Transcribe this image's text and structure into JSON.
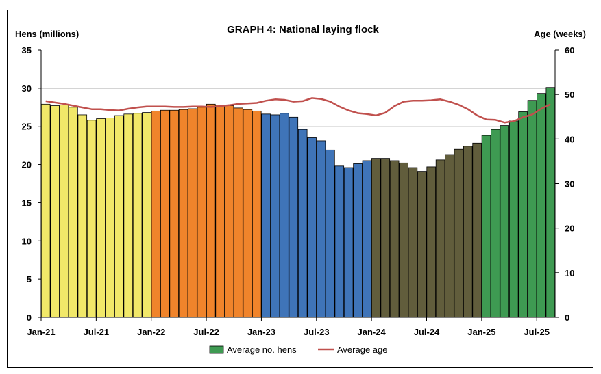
{
  "chart_data": {
    "type": "bar",
    "title": "GRAPH 4: National laying flock",
    "ylabel": "Hens (millions)",
    "y2label": "Age (weeks)",
    "ylim": [
      0,
      35
    ],
    "y2lim": [
      0,
      60
    ],
    "yticks": [
      0,
      5,
      10,
      15,
      20,
      25,
      30,
      35
    ],
    "y2ticks": [
      0,
      10,
      20,
      30,
      40,
      50,
      60
    ],
    "xtick_labels": [
      "Jan-21",
      "Jul-21",
      "Jan-22",
      "Jul-22",
      "Jan-23",
      "Jul-23",
      "Jan-24",
      "Jul-24",
      "Jan-25",
      "Jul-25"
    ],
    "grid": "horizontal at 25 and 30",
    "legend_position": "bottom",
    "categories": [
      "Jan-21",
      "Feb-21",
      "Mar-21",
      "Apr-21",
      "May-21",
      "Jun-21",
      "Jul-21",
      "Aug-21",
      "Sep-21",
      "Oct-21",
      "Nov-21",
      "Dec-21",
      "Jan-22",
      "Feb-22",
      "Mar-22",
      "Apr-22",
      "May-22",
      "Jun-22",
      "Jul-22",
      "Aug-22",
      "Sep-22",
      "Oct-22",
      "Nov-22",
      "Dec-22",
      "Jan-23",
      "Feb-23",
      "Mar-23",
      "Apr-23",
      "May-23",
      "Jun-23",
      "Jul-23",
      "Aug-23",
      "Sep-23",
      "Oct-23",
      "Nov-23",
      "Dec-23",
      "Jan-24",
      "Feb-24",
      "Mar-24",
      "Apr-24",
      "May-24",
      "Jun-24",
      "Jul-24",
      "Aug-24",
      "Sep-24",
      "Oct-24",
      "Nov-24",
      "Dec-24",
      "Jan-25",
      "Feb-25",
      "Mar-25",
      "Apr-25",
      "May-25",
      "Jun-25",
      "Jul-25",
      "Aug-25"
    ],
    "series": [
      {
        "name": "Average no. hens",
        "axis": "left",
        "kind": "bar",
        "values": [
          27.9,
          27.7,
          27.8,
          27.5,
          26.5,
          25.8,
          26.0,
          26.1,
          26.4,
          26.6,
          26.7,
          26.8,
          27.0,
          27.1,
          27.1,
          27.2,
          27.3,
          27.5,
          27.9,
          27.8,
          27.7,
          27.4,
          27.2,
          27.0,
          26.6,
          26.5,
          26.7,
          26.2,
          24.6,
          23.5,
          23.1,
          21.9,
          19.8,
          19.6,
          20.1,
          20.5,
          20.8,
          20.8,
          20.5,
          20.2,
          19.6,
          19.1,
          19.7,
          20.6,
          21.3,
          22.0,
          22.4,
          22.8,
          23.8,
          24.6,
          25.1,
          25.7,
          26.9,
          28.4,
          29.3,
          30.1
        ]
      },
      {
        "name": "Average age",
        "axis": "right",
        "kind": "line",
        "color": "#C0504D",
        "values": [
          48.5,
          48.2,
          47.9,
          47.5,
          47.1,
          46.7,
          46.7,
          46.5,
          46.4,
          46.8,
          47.1,
          47.3,
          47.3,
          47.3,
          47.2,
          47.2,
          47.3,
          47.3,
          47.2,
          47.4,
          47.6,
          47.9,
          48.0,
          48.1,
          48.6,
          48.9,
          48.8,
          48.4,
          48.5,
          49.2,
          49.0,
          48.4,
          47.3,
          46.4,
          45.8,
          45.6,
          45.3,
          45.9,
          47.4,
          48.4,
          48.6,
          48.6,
          48.7,
          48.9,
          48.4,
          47.7,
          46.7,
          45.3,
          44.4,
          44.3,
          43.7,
          44.0,
          44.9,
          45.5,
          46.8,
          47.8
        ]
      }
    ],
    "bar_colors": [
      {
        "from": "Jan-21",
        "to": "Dec-21",
        "color": "#F1E869"
      },
      {
        "from": "Jan-22",
        "to": "Dec-22",
        "color": "#F0842B"
      },
      {
        "from": "Jan-23",
        "to": "Dec-23",
        "color": "#3F74B8"
      },
      {
        "from": "Jan-24",
        "to": "Dec-24",
        "color": "#615D3C"
      },
      {
        "from": "Jan-25",
        "to": "Aug-25",
        "color": "#3E9A52"
      }
    ],
    "legend": [
      "Average no. hens",
      "Average age"
    ]
  }
}
